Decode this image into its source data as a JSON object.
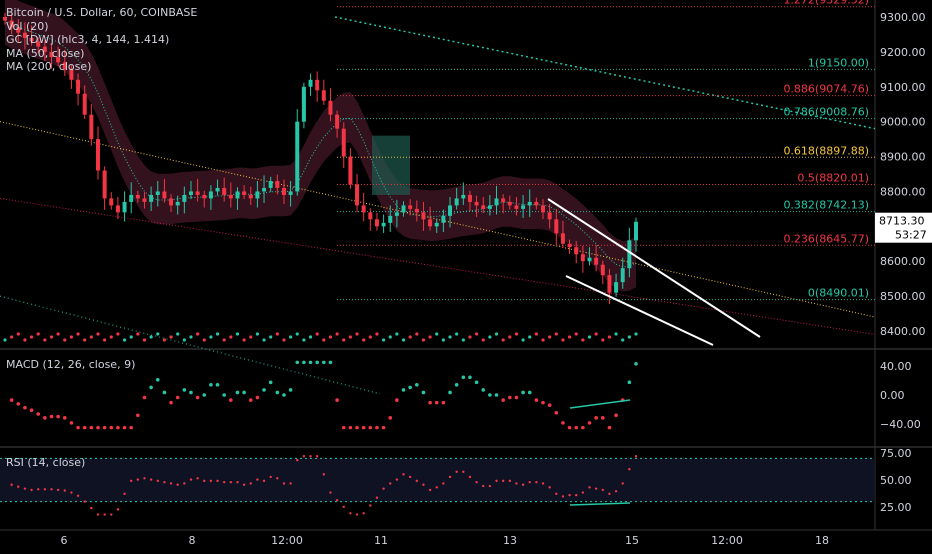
{
  "chart_data": {
    "type": "candlestick",
    "symbol_line": "Bitcoin / U.S. Dollar, 60, COINBASE",
    "indicators": [
      "Vol (20)",
      "GC [DW] (hlc3, 4, 144, 1.414)",
      "MA (50, close)",
      "MA (200, close)"
    ],
    "price_axis": {
      "ticks": [
        "9300.00",
        "9200.00",
        "9100.00",
        "9000.00",
        "8900.00",
        "8800.00",
        "8700.00",
        "8600.00",
        "8500.00",
        "8400.00"
      ],
      "ylim": [
        8360,
        9330
      ]
    },
    "x_axis": {
      "ticks": [
        "6",
        "8",
        "12:00",
        "11",
        "13",
        "15",
        "12:00",
        "18"
      ]
    },
    "last_price": "8713.30",
    "countdown": "53:27",
    "fib_levels": [
      {
        "label": "1.272(9329.52)",
        "price": 9329.52,
        "color": "#f23645"
      },
      {
        "label": "1(9150.00)",
        "price": 9150.0,
        "color": "#26c6a6"
      },
      {
        "label": "0.886(9074.76)",
        "price": 9074.76,
        "color": "#f23645"
      },
      {
        "label": "0.786(9008.76)",
        "price": 9008.76,
        "color": "#26c6a6"
      },
      {
        "label": "0.618(8897.88)",
        "price": 8897.88,
        "color": "#f5c542"
      },
      {
        "label": "0.5(8820.01)",
        "price": 8820.01,
        "color": "#f23645"
      },
      {
        "label": "0.382(8742.13)",
        "price": 8742.13,
        "color": "#26c6a6"
      },
      {
        "label": "0.236(8645.77)",
        "price": 8645.77,
        "color": "#f23645"
      },
      {
        "label": "0(8490.01)",
        "price": 8490.01,
        "color": "#26c6a6"
      }
    ],
    "close_series": [
      9290,
      9270,
      9255,
      9240,
      9230,
      9215,
      9200,
      9185,
      9170,
      9150,
      9120,
      9080,
      9020,
      8950,
      8860,
      8780,
      8760,
      8740,
      8770,
      8790,
      8780,
      8770,
      8790,
      8800,
      8780,
      8760,
      8770,
      8790,
      8800,
      8790,
      8780,
      8800,
      8810,
      8790,
      8780,
      8800,
      8790,
      8780,
      8800,
      8810,
      8830,
      8810,
      8790,
      8800,
      9000,
      9100,
      9120,
      9090,
      9060,
      9020,
      8980,
      8900,
      8820,
      8760,
      8740,
      8720,
      8700,
      8710,
      8730,
      8740,
      8760,
      8750,
      8740,
      8720,
      8700,
      8710,
      8730,
      8760,
      8780,
      8790,
      8770,
      8760,
      8750,
      8760,
      8780,
      8770,
      8760,
      8750,
      8760,
      8770,
      8760,
      8740,
      8720,
      8680,
      8650,
      8640,
      8620,
      8600,
      8610,
      8590,
      8560,
      8510,
      8540,
      8580,
      8660,
      8713
    ],
    "macd": {
      "title": "MACD (12, 26, close, 9)",
      "ticks": [
        "40.00",
        "0.00",
        "−40.00"
      ],
      "ylim": [
        -60,
        60
      ]
    },
    "rsi": {
      "title": "RSI (14, close)",
      "ticks": [
        "75.00",
        "50.00",
        "25.00"
      ],
      "ylim": [
        15,
        75
      ]
    },
    "colors": {
      "up": "#26c6a6",
      "down": "#f23645",
      "ma50": "#f5c542",
      "ma200": "#c2185b",
      "band": "#5c1f35",
      "axis_text": "#d1d4dc"
    }
  }
}
